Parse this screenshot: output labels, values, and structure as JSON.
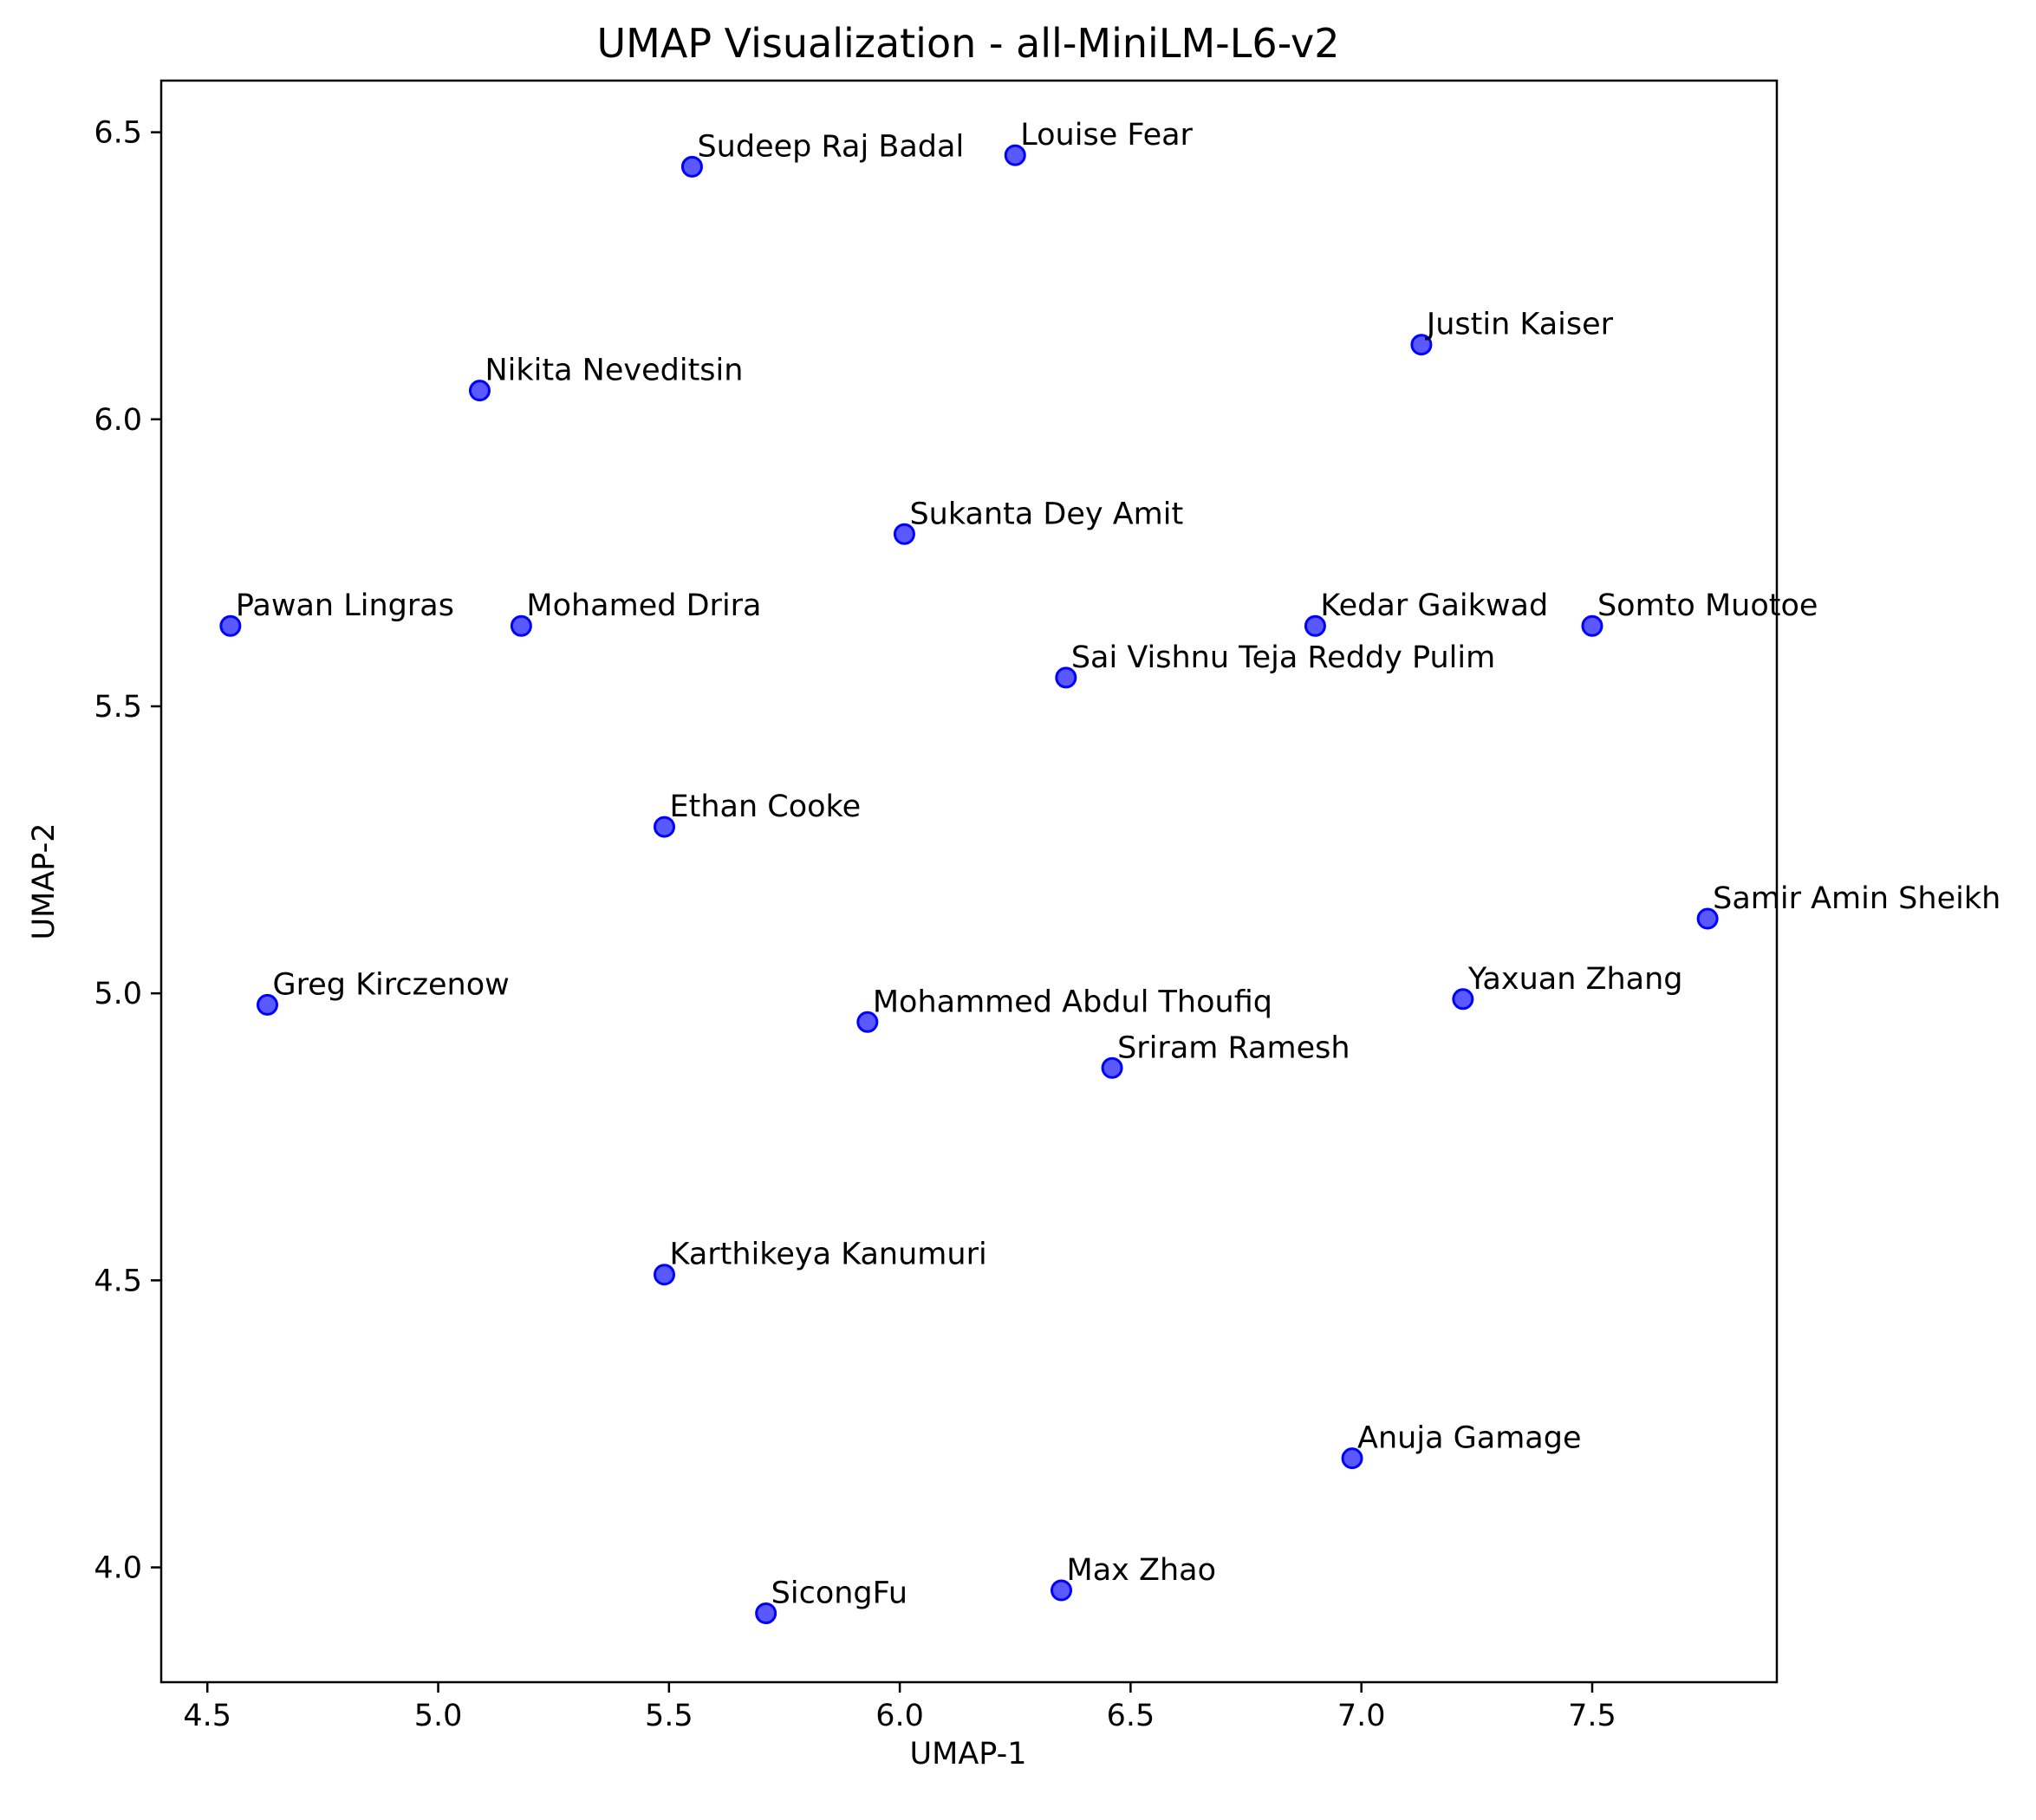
{
  "chart_data": {
    "type": "scatter",
    "title": "UMAP Visualization - all-MiniLM-L6-v2",
    "xlabel": "UMAP-1",
    "ylabel": "UMAP-2",
    "xlim": [
      4.4,
      7.9
    ],
    "ylim": [
      3.8,
      6.59
    ],
    "xticks": [
      "4.5",
      "5.0",
      "5.5",
      "6.0",
      "6.5",
      "7.0",
      "7.5"
    ],
    "yticks": [
      "4.0",
      "4.5",
      "5.0",
      "5.5",
      "6.0",
      "6.5"
    ],
    "grid": false,
    "marker_color": "#0000ff",
    "points": [
      {
        "label": "Sudeep Raj Badal",
        "x": 5.55,
        "y": 6.44
      },
      {
        "label": "Louise Fear",
        "x": 6.25,
        "y": 6.46
      },
      {
        "label": "Justin Kaiser",
        "x": 7.13,
        "y": 6.13
      },
      {
        "label": "Nikita Neveditsin",
        "x": 5.09,
        "y": 6.05
      },
      {
        "label": "Sukanta Dey Amit",
        "x": 6.01,
        "y": 5.8
      },
      {
        "label": "Pawan Lingras",
        "x": 4.55,
        "y": 5.64
      },
      {
        "label": "Mohamed Drira",
        "x": 5.18,
        "y": 5.64
      },
      {
        "label": "Kedar Gaikwad",
        "x": 6.9,
        "y": 5.64
      },
      {
        "label": "Somto Muotoe",
        "x": 7.5,
        "y": 5.64
      },
      {
        "label": "Sai Vishnu Teja Reddy Pulim",
        "x": 6.36,
        "y": 5.55
      },
      {
        "label": "Ethan Cooke",
        "x": 5.49,
        "y": 5.29
      },
      {
        "label": "Samir Amin Sheikh",
        "x": 7.75,
        "y": 5.13
      },
      {
        "label": "Greg Kirczenow",
        "x": 4.63,
        "y": 4.98
      },
      {
        "label": "Mohammed Abdul Thoufiq",
        "x": 5.93,
        "y": 4.95
      },
      {
        "label": "Yaxuan Zhang",
        "x": 7.22,
        "y": 4.99
      },
      {
        "label": "Sriram Ramesh",
        "x": 6.46,
        "y": 4.87
      },
      {
        "label": "Karthikeya Kanumuri",
        "x": 5.49,
        "y": 4.51
      },
      {
        "label": "Anuja Gamage",
        "x": 6.98,
        "y": 4.19
      },
      {
        "label": "Max Zhao",
        "x": 6.35,
        "y": 3.96
      },
      {
        "label": "SicongFu",
        "x": 5.71,
        "y": 3.92
      }
    ]
  }
}
